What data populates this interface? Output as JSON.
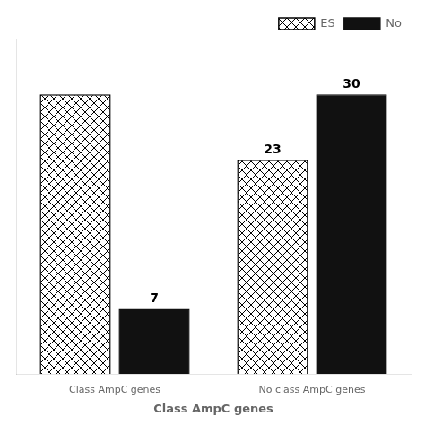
{
  "chart_data": {
    "type": "bar",
    "categories": [
      "Class AmpC genes",
      "No class AmpC genes"
    ],
    "series": [
      {
        "name": "ES",
        "color": "#ffffff",
        "values": [
          30,
          23
        ],
        "value_labels": [
          null,
          "23"
        ]
      },
      {
        "name": "No",
        "color": "#111111",
        "values": [
          7,
          30
        ],
        "value_labels": [
          "7",
          "30"
        ]
      }
    ],
    "xlabel": "Class AmpC genes",
    "ylim": [
      0,
      36
    ],
    "grid": false,
    "legend": "upper right",
    "data_labels": true,
    "tick_labels": "x"
  }
}
